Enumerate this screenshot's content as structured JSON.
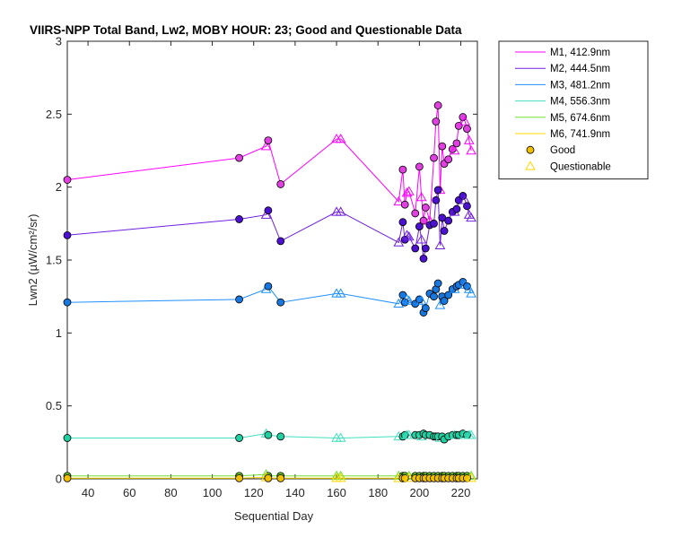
{
  "chart_data": {
    "type": "line",
    "title": "VIIRS-NPP Total Band, Lw2, MOBY HOUR: 23;  Good and Questionable Data",
    "xlabel": "Sequential Day",
    "ylabel": "Lwn2 (µW/cm²/sr)",
    "xlim": [
      30,
      228
    ],
    "ylim": [
      0,
      3
    ],
    "xticks": [
      40,
      60,
      80,
      100,
      120,
      140,
      160,
      180,
      200,
      220
    ],
    "yticks": [
      0,
      0.5,
      1,
      1.5,
      2,
      2.5,
      3
    ],
    "xtick_labels": [
      "40",
      "60",
      "80",
      "100",
      "120",
      "140",
      "160",
      "180",
      "200",
      "220"
    ],
    "ytick_labels": [
      "0",
      "0.5",
      "1",
      "1.5",
      "2",
      "2.5",
      "3"
    ],
    "legend_position": "outside-top-right",
    "series": [
      {
        "name": "M1, 412.9nm",
        "color": "#ff00ff",
        "fill": "#e040e0",
        "points": [
          [
            30,
            2.05,
            "g"
          ],
          [
            113,
            2.2,
            "g"
          ],
          [
            126,
            2.28,
            "q"
          ],
          [
            127,
            2.32,
            "g"
          ],
          [
            133,
            2.02,
            "g"
          ],
          [
            160,
            2.33,
            "q"
          ],
          [
            162,
            2.33,
            "q"
          ],
          [
            190,
            1.9,
            "q"
          ],
          [
            192,
            2.12,
            "g"
          ],
          [
            193,
            1.88,
            "g"
          ],
          [
            194,
            1.96,
            "q"
          ],
          [
            195,
            1.97,
            "q"
          ],
          [
            198,
            1.82,
            "g"
          ],
          [
            200,
            2.14,
            "g"
          ],
          [
            201,
            1.93,
            "q"
          ],
          [
            202,
            1.77,
            "g"
          ],
          [
            203,
            1.86,
            "g"
          ],
          [
            205,
            1.77,
            "q"
          ],
          [
            207,
            2.2,
            "g"
          ],
          [
            208,
            2.45,
            "g"
          ],
          [
            209,
            2.56,
            "g"
          ],
          [
            210,
            1.98,
            "q"
          ],
          [
            211,
            2.28,
            "g"
          ],
          [
            212,
            2.16,
            "g"
          ],
          [
            214,
            2.19,
            "g"
          ],
          [
            216,
            2.26,
            "g"
          ],
          [
            217,
            2.25,
            "q"
          ],
          [
            218,
            2.3,
            "g"
          ],
          [
            219,
            2.42,
            "g"
          ],
          [
            221,
            2.48,
            "g"
          ],
          [
            222,
            2.45,
            "q"
          ],
          [
            223,
            2.4,
            "g"
          ],
          [
            224,
            2.32,
            "q"
          ],
          [
            225,
            2.25,
            "q"
          ]
        ]
      },
      {
        "name": "M2, 444.5nm",
        "color": "#7020e0",
        "fill": "#4b10d0",
        "points": [
          [
            30,
            1.67,
            "g"
          ],
          [
            113,
            1.78,
            "g"
          ],
          [
            126,
            1.81,
            "q"
          ],
          [
            127,
            1.84,
            "g"
          ],
          [
            133,
            1.63,
            "g"
          ],
          [
            160,
            1.83,
            "q"
          ],
          [
            162,
            1.83,
            "q"
          ],
          [
            190,
            1.62,
            "q"
          ],
          [
            192,
            1.76,
            "g"
          ],
          [
            193,
            1.64,
            "g"
          ],
          [
            194,
            1.67,
            "q"
          ],
          [
            195,
            1.66,
            "q"
          ],
          [
            198,
            1.58,
            "g"
          ],
          [
            200,
            1.73,
            "g"
          ],
          [
            201,
            1.64,
            "q"
          ],
          [
            202,
            1.51,
            "g"
          ],
          [
            203,
            1.58,
            "g"
          ],
          [
            205,
            1.74,
            "g"
          ],
          [
            207,
            1.75,
            "g"
          ],
          [
            208,
            1.91,
            "g"
          ],
          [
            209,
            1.98,
            "g"
          ],
          [
            210,
            1.6,
            "q"
          ],
          [
            211,
            1.79,
            "g"
          ],
          [
            212,
            1.7,
            "g"
          ],
          [
            214,
            1.77,
            "g"
          ],
          [
            216,
            1.83,
            "g"
          ],
          [
            217,
            1.83,
            "q"
          ],
          [
            218,
            1.85,
            "g"
          ],
          [
            219,
            1.91,
            "g"
          ],
          [
            221,
            1.94,
            "g"
          ],
          [
            222,
            1.91,
            "q"
          ],
          [
            223,
            1.87,
            "g"
          ],
          [
            224,
            1.81,
            "q"
          ],
          [
            225,
            1.79,
            "q"
          ]
        ]
      },
      {
        "name": "M3, 481.2nm",
        "color": "#1e90ff",
        "fill": "#1878e0",
        "points": [
          [
            30,
            1.21,
            "g"
          ],
          [
            113,
            1.23,
            "g"
          ],
          [
            126,
            1.3,
            "q"
          ],
          [
            127,
            1.32,
            "g"
          ],
          [
            133,
            1.21,
            "g"
          ],
          [
            160,
            1.27,
            "q"
          ],
          [
            162,
            1.27,
            "q"
          ],
          [
            190,
            1.2,
            "q"
          ],
          [
            192,
            1.26,
            "g"
          ],
          [
            193,
            1.21,
            "g"
          ],
          [
            194,
            1.23,
            "q"
          ],
          [
            195,
            1.22,
            "q"
          ],
          [
            198,
            1.2,
            "g"
          ],
          [
            200,
            1.23,
            "g"
          ],
          [
            201,
            1.22,
            "q"
          ],
          [
            202,
            1.14,
            "g"
          ],
          [
            203,
            1.17,
            "g"
          ],
          [
            205,
            1.27,
            "g"
          ],
          [
            207,
            1.25,
            "g"
          ],
          [
            208,
            1.3,
            "g"
          ],
          [
            209,
            1.34,
            "g"
          ],
          [
            210,
            1.19,
            "q"
          ],
          [
            211,
            1.25,
            "g"
          ],
          [
            212,
            1.22,
            "g"
          ],
          [
            214,
            1.26,
            "g"
          ],
          [
            216,
            1.3,
            "g"
          ],
          [
            217,
            1.3,
            "q"
          ],
          [
            218,
            1.32,
            "g"
          ],
          [
            219,
            1.33,
            "g"
          ],
          [
            221,
            1.35,
            "g"
          ],
          [
            222,
            1.33,
            "q"
          ],
          [
            223,
            1.32,
            "g"
          ],
          [
            224,
            1.3,
            "q"
          ],
          [
            225,
            1.27,
            "q"
          ]
        ]
      },
      {
        "name": "M4, 556.3nm",
        "color": "#40e0c0",
        "fill": "#20d0a0",
        "points": [
          [
            30,
            0.28,
            "g"
          ],
          [
            113,
            0.28,
            "g"
          ],
          [
            126,
            0.31,
            "q"
          ],
          [
            127,
            0.3,
            "g"
          ],
          [
            133,
            0.29,
            "g"
          ],
          [
            160,
            0.28,
            "q"
          ],
          [
            162,
            0.28,
            "q"
          ],
          [
            190,
            0.29,
            "q"
          ],
          [
            192,
            0.29,
            "g"
          ],
          [
            193,
            0.3,
            "g"
          ],
          [
            194,
            0.3,
            "q"
          ],
          [
            195,
            0.3,
            "q"
          ],
          [
            198,
            0.3,
            "g"
          ],
          [
            200,
            0.3,
            "g"
          ],
          [
            201,
            0.29,
            "q"
          ],
          [
            202,
            0.31,
            "g"
          ],
          [
            203,
            0.3,
            "g"
          ],
          [
            205,
            0.3,
            "g"
          ],
          [
            207,
            0.29,
            "g"
          ],
          [
            208,
            0.29,
            "g"
          ],
          [
            209,
            0.29,
            "g"
          ],
          [
            210,
            0.28,
            "q"
          ],
          [
            211,
            0.29,
            "g"
          ],
          [
            212,
            0.27,
            "g"
          ],
          [
            214,
            0.29,
            "g"
          ],
          [
            216,
            0.3,
            "g"
          ],
          [
            217,
            0.3,
            "q"
          ],
          [
            218,
            0.3,
            "g"
          ],
          [
            219,
            0.3,
            "g"
          ],
          [
            221,
            0.31,
            "g"
          ],
          [
            222,
            0.3,
            "q"
          ],
          [
            223,
            0.3,
            "g"
          ],
          [
            224,
            0.3,
            "q"
          ],
          [
            225,
            0.3,
            "q"
          ]
        ]
      },
      {
        "name": "M5, 674.6nm",
        "color": "#70e030",
        "fill": "#60c020",
        "points": [
          [
            30,
            0.02,
            "g"
          ],
          [
            113,
            0.02,
            "g"
          ],
          [
            126,
            0.03,
            "q"
          ],
          [
            127,
            0.02,
            "g"
          ],
          [
            133,
            0.02,
            "g"
          ],
          [
            160,
            0.02,
            "q"
          ],
          [
            162,
            0.02,
            "q"
          ],
          [
            190,
            0.02,
            "q"
          ],
          [
            192,
            0.02,
            "g"
          ],
          [
            193,
            0.02,
            "g"
          ],
          [
            195,
            0.02,
            "q"
          ],
          [
            198,
            0.02,
            "g"
          ],
          [
            200,
            0.02,
            "g"
          ],
          [
            202,
            0.02,
            "g"
          ],
          [
            203,
            0.02,
            "g"
          ],
          [
            205,
            0.02,
            "g"
          ],
          [
            207,
            0.02,
            "g"
          ],
          [
            209,
            0.02,
            "g"
          ],
          [
            211,
            0.02,
            "g"
          ],
          [
            212,
            0.02,
            "g"
          ],
          [
            214,
            0.02,
            "g"
          ],
          [
            216,
            0.02,
            "g"
          ],
          [
            218,
            0.02,
            "g"
          ],
          [
            219,
            0.02,
            "g"
          ],
          [
            221,
            0.02,
            "g"
          ],
          [
            223,
            0.02,
            "g"
          ],
          [
            225,
            0.02,
            "q"
          ]
        ]
      },
      {
        "name": "M6, 741.9nm",
        "color": "#ffd700",
        "fill": "#f0c000",
        "points": [
          [
            30,
            0.004,
            "g"
          ],
          [
            113,
            0.004,
            "g"
          ],
          [
            126,
            0.01,
            "q"
          ],
          [
            127,
            0.004,
            "g"
          ],
          [
            133,
            0.004,
            "g"
          ],
          [
            160,
            0.005,
            "q"
          ],
          [
            162,
            0.005,
            "q"
          ],
          [
            190,
            0.004,
            "q"
          ],
          [
            192,
            0.004,
            "g"
          ],
          [
            193,
            0.004,
            "g"
          ],
          [
            195,
            0.005,
            "q"
          ],
          [
            198,
            0.004,
            "g"
          ],
          [
            200,
            0.004,
            "g"
          ],
          [
            202,
            0.004,
            "g"
          ],
          [
            203,
            0.004,
            "g"
          ],
          [
            205,
            0.004,
            "g"
          ],
          [
            207,
            0.004,
            "g"
          ],
          [
            209,
            0.004,
            "g"
          ],
          [
            211,
            0.004,
            "g"
          ],
          [
            212,
            0.004,
            "g"
          ],
          [
            214,
            0.004,
            "g"
          ],
          [
            216,
            0.004,
            "g"
          ],
          [
            218,
            0.004,
            "g"
          ],
          [
            219,
            0.004,
            "g"
          ],
          [
            221,
            0.004,
            "g"
          ],
          [
            223,
            0.004,
            "g"
          ],
          [
            225,
            0.005,
            "q"
          ]
        ]
      }
    ],
    "legend_markers": [
      {
        "label": "Good",
        "symbol": "circle",
        "color": "#ffd700",
        "fill": "#f0c000"
      },
      {
        "label": "Questionable",
        "symbol": "triangle",
        "color": "#ffd700"
      }
    ]
  }
}
